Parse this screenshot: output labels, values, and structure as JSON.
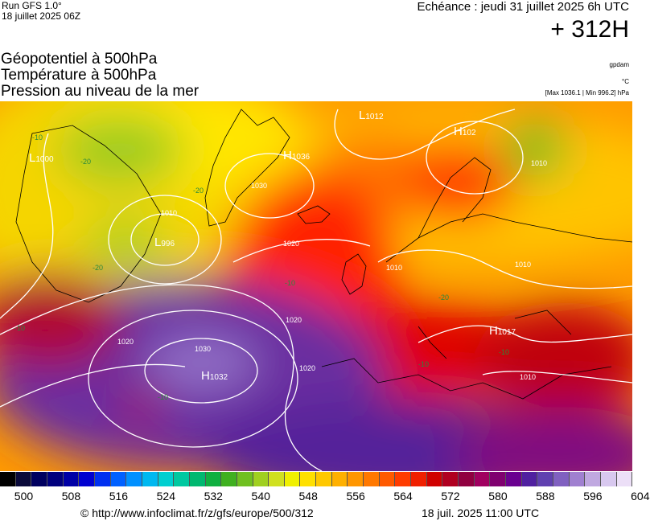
{
  "header": {
    "run_label": "Run GFS 1.0°",
    "run_date": "18 juillet 2025 06Z",
    "echeance": "Echéance : jeudi 31 juillet 2025 6h UTC",
    "hour": "+ 312H"
  },
  "titles": {
    "line1": "Géopotentiel à 500hPa",
    "line2": "Température à 500hPa",
    "line3": "Pression au niveau de la mer"
  },
  "units": {
    "geopotential": "gpdam",
    "temperature": "°C",
    "pressure": "[Max 1036.1 | Min 996.2] hPa"
  },
  "map": {
    "pressure_centers": [
      {
        "type": "L",
        "value": "1000"
      },
      {
        "type": "L",
        "value": "1012"
      },
      {
        "type": "H",
        "value": "1036"
      },
      {
        "type": "H",
        "value": "102"
      },
      {
        "type": "L",
        "value": "996"
      },
      {
        "type": "H",
        "value": "1032"
      },
      {
        "type": "H",
        "value": "1017"
      }
    ],
    "isobar_labels": [
      "1030",
      "1020",
      "1020",
      "1010",
      "1020",
      "1030",
      "1020",
      "1010",
      "1010",
      "1010",
      "1010"
    ],
    "temperature_labels": [
      "-10",
      "-20",
      "-20",
      "-20",
      "-10",
      "-10",
      "-10",
      "-20",
      "-10",
      "-10"
    ]
  },
  "scale": {
    "ticks": [
      "500",
      "508",
      "516",
      "524",
      "532",
      "540",
      "548",
      "556",
      "564",
      "572",
      "580",
      "588",
      "596",
      "604"
    ],
    "colors": [
      "#000000",
      "#0a0a3a",
      "#000060",
      "#00007e",
      "#0000a6",
      "#0000d0",
      "#0030f0",
      "#0060ff",
      "#0090ff",
      "#00b8f0",
      "#00cfd0",
      "#00c8a0",
      "#00b870",
      "#10b040",
      "#40b020",
      "#70c020",
      "#a0d020",
      "#d0e020",
      "#f0f000",
      "#ffe000",
      "#ffc800",
      "#ffb000",
      "#ff9600",
      "#ff7800",
      "#ff5a00",
      "#ff3c00",
      "#f02000",
      "#d00000",
      "#b00020",
      "#900040",
      "#a00060",
      "#800070",
      "#6a0090",
      "#5020a0",
      "#6040b0",
      "#8060c0",
      "#a080d0",
      "#c0a8e0",
      "#d8c8ef",
      "#ecdff7"
    ],
    "credit": "© http://www.infoclimat.fr/z/gfs/europe/500/312",
    "run_time": "18 juil. 2025 11:00 UTC"
  }
}
